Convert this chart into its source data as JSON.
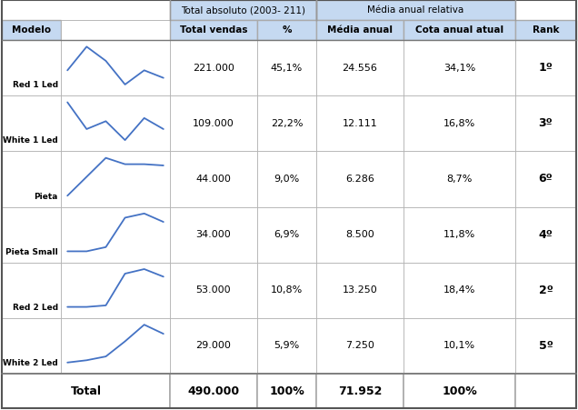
{
  "header_row1_col23": "Total absoluto (2003- 211)",
  "header_row1_col45": "Média anual relativa",
  "header_row2": [
    "Modelo",
    "",
    "Total vendas",
    "%",
    "Média anual",
    "Cota anual atual",
    "Rank"
  ],
  "rows": [
    {
      "model": "Red 1 Led",
      "total_vendas": "221.000",
      "pct": "45,1%",
      "media_anual": "24.556",
      "cota_anual": "34,1%",
      "rank": "1º"
    },
    {
      "model": "White 1 Led",
      "total_vendas": "109.000",
      "pct": "22,2%",
      "media_anual": "12.111",
      "cota_anual": "16,8%",
      "rank": "3º"
    },
    {
      "model": "Pieta",
      "total_vendas": "44.000",
      "pct": "9,0%",
      "media_anual": "6.286",
      "cota_anual": "8,7%",
      "rank": "6º"
    },
    {
      "model": "Pieta Small",
      "total_vendas": "34.000",
      "pct": "6,9%",
      "media_anual": "8.500",
      "cota_anual": "11,8%",
      "rank": "4º"
    },
    {
      "model": "Red 2 Led",
      "total_vendas": "53.000",
      "pct": "10,8%",
      "media_anual": "13.250",
      "cota_anual": "18,4%",
      "rank": "2º"
    },
    {
      "model": "White 2 Led",
      "total_vendas": "29.000",
      "pct": "5,9%",
      "media_anual": "7.250",
      "cota_anual": "10,1%",
      "rank": "5º"
    }
  ],
  "total_row": {
    "label": "Total",
    "total_vendas": "490.000",
    "pct": "100%",
    "media_anual": "71.952",
    "cota_anual": "100%"
  },
  "line_data": {
    "Red 1 Led": [
      0.6,
      0.85,
      0.7,
      0.45,
      0.6,
      0.52
    ],
    "White 1 Led": [
      0.72,
      0.55,
      0.6,
      0.48,
      0.62,
      0.55
    ],
    "Pieta": [
      0.3,
      0.45,
      0.6,
      0.55,
      0.55,
      0.54
    ],
    "Pieta Small": [
      0.3,
      0.3,
      0.35,
      0.7,
      0.75,
      0.65
    ],
    "Red 2 Led": [
      0.28,
      0.28,
      0.3,
      0.72,
      0.78,
      0.68
    ],
    "White 2 Led": [
      0.22,
      0.25,
      0.3,
      0.5,
      0.72,
      0.6
    ]
  },
  "header_bg": "#c5d9f1",
  "line_color": "#4472c4",
  "border_color": "#aaaaaa",
  "border_thick": "#555555"
}
